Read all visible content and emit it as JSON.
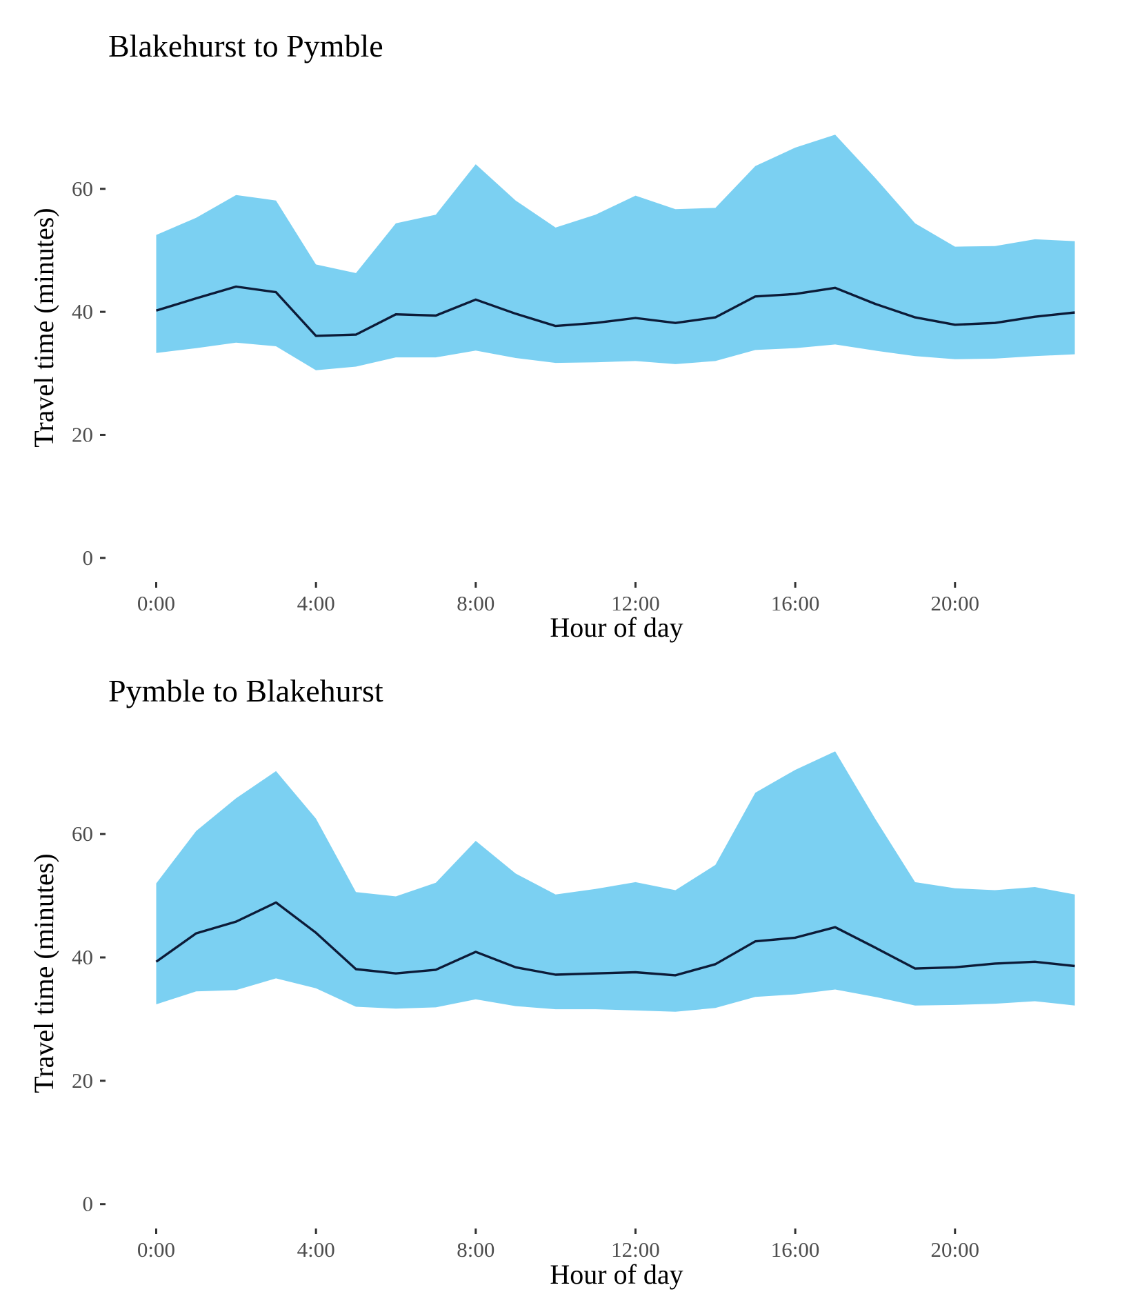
{
  "chart_data": [
    {
      "type": "area",
      "title": "Blakehurst to Pymble",
      "xlabel": "Hour of day",
      "ylabel": "Travel time (minutes)",
      "x": [
        0,
        1,
        2,
        3,
        4,
        5,
        6,
        7,
        8,
        9,
        10,
        11,
        12,
        13,
        14,
        15,
        16,
        17,
        18,
        19,
        20,
        21,
        22,
        23
      ],
      "xlim": [
        -1.2,
        24.2
      ],
      "ylim": [
        -3.5,
        75
      ],
      "xticks": [
        0,
        4,
        8,
        12,
        16,
        20
      ],
      "xtick_labels": [
        "0:00",
        "4:00",
        "8:00",
        "12:00",
        "16:00",
        "20:00"
      ],
      "yticks": [
        0,
        20,
        40,
        60
      ],
      "ytick_labels": [
        "0",
        "20",
        "40",
        "60"
      ],
      "grid": false,
      "series": [
        {
          "kind": "ribbon-upper",
          "values": [
            52.5,
            55.3,
            59.0,
            58.1,
            47.7,
            46.3,
            54.4,
            55.8,
            64.0,
            58.1,
            53.7,
            55.8,
            58.9,
            56.7,
            56.9,
            63.7,
            66.7,
            68.8,
            61.8,
            54.4,
            50.6,
            50.7,
            51.8,
            51.5
          ],
          "color": "#7bd0f2"
        },
        {
          "kind": "ribbon-lower",
          "values": [
            33.3,
            34.1,
            35.0,
            34.4,
            30.5,
            31.1,
            32.6,
            32.6,
            33.7,
            32.5,
            31.7,
            31.8,
            32.0,
            31.5,
            32.0,
            33.8,
            34.1,
            34.7,
            33.7,
            32.8,
            32.3,
            32.4,
            32.8,
            33.1
          ],
          "color": "#7bd0f2"
        },
        {
          "kind": "line",
          "values": [
            40.2,
            42.2,
            44.1,
            43.2,
            36.1,
            36.3,
            39.6,
            39.4,
            42.0,
            39.7,
            37.7,
            38.2,
            39.0,
            38.2,
            39.1,
            42.5,
            42.9,
            43.9,
            41.3,
            39.1,
            37.9,
            38.2,
            39.2,
            39.9
          ],
          "color": "#0c1b38"
        }
      ]
    },
    {
      "type": "area",
      "title": "Pymble to Blakehurst",
      "xlabel": "Hour of day",
      "ylabel": "Travel time (minutes)",
      "x": [
        0,
        1,
        2,
        3,
        4,
        5,
        6,
        7,
        8,
        9,
        10,
        11,
        12,
        13,
        14,
        15,
        16,
        17,
        18,
        19,
        20,
        21,
        22,
        23
      ],
      "xlim": [
        -1.2,
        24.2
      ],
      "ylim": [
        -3.5,
        75
      ],
      "xticks": [
        0,
        4,
        8,
        12,
        16,
        20
      ],
      "xtick_labels": [
        "0:00",
        "4:00",
        "8:00",
        "12:00",
        "16:00",
        "20:00"
      ],
      "yticks": [
        0,
        20,
        40,
        60
      ],
      "ytick_labels": [
        "0",
        "20",
        "40",
        "60"
      ],
      "grid": false,
      "series": [
        {
          "kind": "ribbon-upper",
          "values": [
            52.0,
            60.5,
            65.8,
            70.2,
            62.5,
            50.6,
            49.9,
            52.1,
            58.9,
            53.6,
            50.2,
            51.1,
            52.2,
            50.9,
            55.0,
            66.7,
            70.4,
            73.4,
            62.5,
            52.2,
            51.2,
            50.9,
            51.4,
            50.2
          ],
          "color": "#7bd0f2"
        },
        {
          "kind": "ribbon-lower",
          "values": [
            32.4,
            34.5,
            34.7,
            36.6,
            35.0,
            32.0,
            31.7,
            31.9,
            33.2,
            32.1,
            31.6,
            31.6,
            31.4,
            31.2,
            31.8,
            33.6,
            34.0,
            34.8,
            33.6,
            32.2,
            32.3,
            32.5,
            32.9,
            32.2
          ],
          "color": "#7bd0f2"
        },
        {
          "kind": "line",
          "values": [
            39.3,
            43.9,
            45.8,
            48.9,
            44.0,
            38.1,
            37.4,
            38.0,
            40.9,
            38.4,
            37.2,
            37.4,
            37.6,
            37.1,
            38.9,
            42.6,
            43.2,
            44.9,
            41.6,
            38.2,
            38.4,
            39.0,
            39.3,
            38.6
          ],
          "color": "#0c1b38"
        }
      ]
    }
  ],
  "colors": {
    "ribbon": "#7bd0f2",
    "line": "#0c1b38",
    "tick_text": "#4d4d4d",
    "axis_ticks": "#333333",
    "background": "#ffffff"
  }
}
